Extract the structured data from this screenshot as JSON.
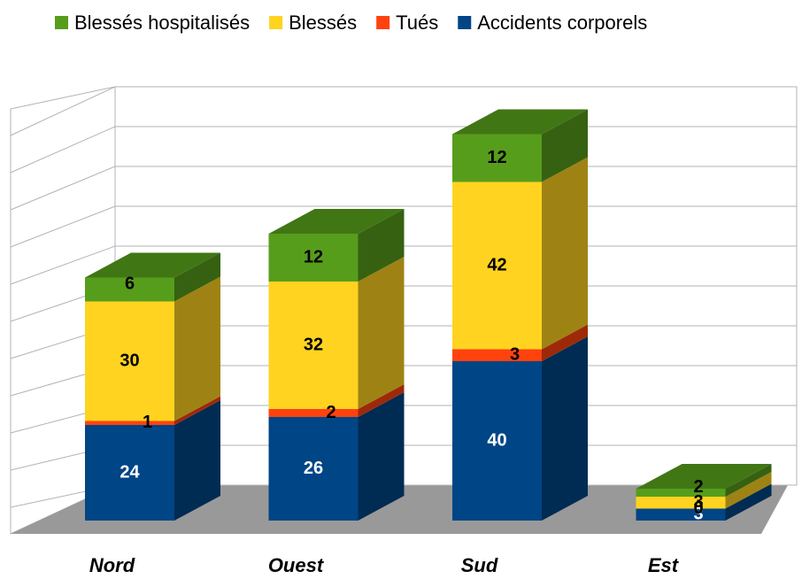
{
  "chart_data": {
    "type": "bar3d",
    "categories": [
      "Nord",
      "Ouest",
      "Sud",
      "Est"
    ],
    "series": [
      {
        "name": "Accidents corporels",
        "color": "#004586",
        "values": [
          24,
          26,
          40,
          3
        ]
      },
      {
        "name": "Tués",
        "color": "#ff420e",
        "values": [
          1,
          2,
          3,
          0
        ]
      },
      {
        "name": "Blessés",
        "color": "#ffd320",
        "values": [
          30,
          32,
          42,
          3
        ]
      },
      {
        "name": "Blessés hospitalisés",
        "color": "#579d1c",
        "values": [
          6,
          12,
          12,
          2
        ]
      }
    ],
    "ylim": [
      0,
      100
    ],
    "yticks": [
      0,
      10,
      20,
      30,
      40,
      50,
      60,
      70,
      80,
      90,
      100
    ],
    "grid": true
  }
}
